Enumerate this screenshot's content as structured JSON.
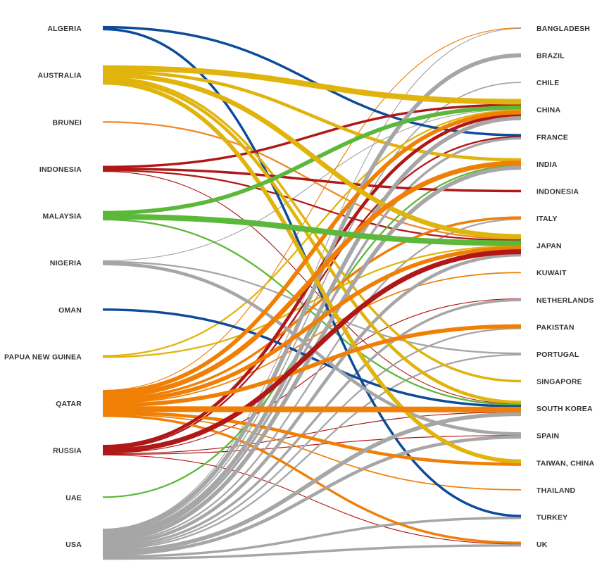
{
  "diagram": {
    "type": "bipartite flow diagram",
    "exporters": [
      {
        "name": "ALGERIA",
        "color": "#0d4a9a"
      },
      {
        "name": "AUSTRALIA",
        "color": "#e0b40c"
      },
      {
        "name": "BRUNEI",
        "color": "#ee8a2a"
      },
      {
        "name": "INDONESIA",
        "color": "#b01717"
      },
      {
        "name": "MALAYSIA",
        "color": "#5bb83a"
      },
      {
        "name": "NIGERIA",
        "color": "#a6a6a6"
      },
      {
        "name": "OMAN",
        "color": "#0d4a9a"
      },
      {
        "name": "PAPUA NEW GUINEA",
        "color": "#e0b40c"
      },
      {
        "name": "QATAR",
        "color": "#f07f06"
      },
      {
        "name": "RUSSIA",
        "color": "#b01717"
      },
      {
        "name": "UAE",
        "color": "#5bb83a"
      },
      {
        "name": "USA",
        "color": "#a6a6a6"
      }
    ],
    "importers": [
      "BANGLADESH",
      "BRAZIL",
      "CHILE",
      "CHINA",
      "FRANCE",
      "INDIA",
      "INDONESIA",
      "ITALY",
      "JAPAN",
      "KUWAIT",
      "NETHERLANDS",
      "PAKISTAN",
      "PORTUGAL",
      "SINGAPORE",
      "SOUTH KOREA",
      "SPAIN",
      "TAIWAN, CHINA",
      "THAILAND",
      "TURKEY",
      "UK"
    ],
    "flows": [
      {
        "from": "USA",
        "to": "BANGLADESH",
        "weight": 1
      },
      {
        "from": "USA",
        "to": "BRAZIL",
        "weight": 5
      },
      {
        "from": "USA",
        "to": "CHILE",
        "weight": 1.5
      },
      {
        "from": "USA",
        "to": "CHINA",
        "weight": 5
      },
      {
        "from": "USA",
        "to": "FRANCE",
        "weight": 3
      },
      {
        "from": "USA",
        "to": "INDIA",
        "weight": 5
      },
      {
        "from": "USA",
        "to": "ITALY",
        "weight": 2
      },
      {
        "from": "USA",
        "to": "JAPAN",
        "weight": 4
      },
      {
        "from": "USA",
        "to": "NETHERLANDS",
        "weight": 3
      },
      {
        "from": "USA",
        "to": "PAKISTAN",
        "weight": 2
      },
      {
        "from": "USA",
        "to": "PORTUGAL",
        "weight": 2
      },
      {
        "from": "USA",
        "to": "SOUTH KOREA",
        "weight": 5
      },
      {
        "from": "USA",
        "to": "SPAIN",
        "weight": 4
      },
      {
        "from": "USA",
        "to": "TURKEY",
        "weight": 3
      },
      {
        "from": "USA",
        "to": "UK",
        "weight": 3
      },
      {
        "from": "ALGERIA",
        "to": "FRANCE",
        "weight": 3
      },
      {
        "from": "ALGERIA",
        "to": "TURKEY",
        "weight": 3
      },
      {
        "from": "OMAN",
        "to": "SOUTH KOREA",
        "weight": 3
      },
      {
        "from": "AUSTRALIA",
        "to": "CHINA",
        "weight": 7
      },
      {
        "from": "AUSTRALIA",
        "to": "JAPAN",
        "weight": 6
      },
      {
        "from": "AUSTRALIA",
        "to": "INDIA",
        "weight": 4
      },
      {
        "from": "AUSTRALIA",
        "to": "SINGAPORE",
        "weight": 3
      },
      {
        "from": "AUSTRALIA",
        "to": "SOUTH KOREA",
        "weight": 4
      },
      {
        "from": "AUSTRALIA",
        "to": "TAIWAN, CHINA",
        "weight": 5
      },
      {
        "from": "PAPUA NEW GUINEA",
        "to": "JAPAN",
        "weight": 2
      },
      {
        "from": "PAPUA NEW GUINEA",
        "to": "CHINA",
        "weight": 2
      },
      {
        "from": "BRUNEI",
        "to": "JAPAN",
        "weight": 2
      },
      {
        "from": "INDONESIA",
        "to": "CHINA",
        "weight": 3
      },
      {
        "from": "INDONESIA",
        "to": "INDONESIA",
        "weight": 3
      },
      {
        "from": "INDONESIA",
        "to": "JAPAN",
        "weight": 2
      },
      {
        "from": "INDONESIA",
        "to": "SOUTH KOREA",
        "weight": 1
      },
      {
        "from": "MALAYSIA",
        "to": "CHINA",
        "weight": 5
      },
      {
        "from": "MALAYSIA",
        "to": "JAPAN",
        "weight": 7
      },
      {
        "from": "MALAYSIA",
        "to": "SOUTH KOREA",
        "weight": 2
      },
      {
        "from": "NIGERIA",
        "to": "CHINA",
        "weight": 1
      },
      {
        "from": "NIGERIA",
        "to": "SPAIN",
        "weight": 4
      },
      {
        "from": "NIGERIA",
        "to": "PORTUGAL",
        "weight": 2
      },
      {
        "from": "QATAR",
        "to": "BANGLADESH",
        "weight": 1
      },
      {
        "from": "QATAR",
        "to": "CHINA",
        "weight": 5
      },
      {
        "from": "QATAR",
        "to": "INDIA",
        "weight": 6
      },
      {
        "from": "QATAR",
        "to": "ITALY",
        "weight": 3
      },
      {
        "from": "QATAR",
        "to": "JAPAN",
        "weight": 5
      },
      {
        "from": "QATAR",
        "to": "KUWAIT",
        "weight": 1.5
      },
      {
        "from": "QATAR",
        "to": "PAKISTAN",
        "weight": 5
      },
      {
        "from": "QATAR",
        "to": "SOUTH KOREA",
        "weight": 7
      },
      {
        "from": "QATAR",
        "to": "TAIWAN, CHINA",
        "weight": 4
      },
      {
        "from": "QATAR",
        "to": "THAILAND",
        "weight": 1.5
      },
      {
        "from": "QATAR",
        "to": "UK",
        "weight": 3
      },
      {
        "from": "RUSSIA",
        "to": "CHINA",
        "weight": 4
      },
      {
        "from": "RUSSIA",
        "to": "FRANCE",
        "weight": 2
      },
      {
        "from": "RUSSIA",
        "to": "JAPAN",
        "weight": 6
      },
      {
        "from": "RUSSIA",
        "to": "NETHERLANDS",
        "weight": 1
      },
      {
        "from": "RUSSIA",
        "to": "SPAIN",
        "weight": 1
      },
      {
        "from": "RUSSIA",
        "to": "SOUTH KOREA",
        "weight": 1
      },
      {
        "from": "RUSSIA",
        "to": "UK",
        "weight": 1
      },
      {
        "from": "UAE",
        "to": "INDIA",
        "weight": 2
      }
    ]
  }
}
